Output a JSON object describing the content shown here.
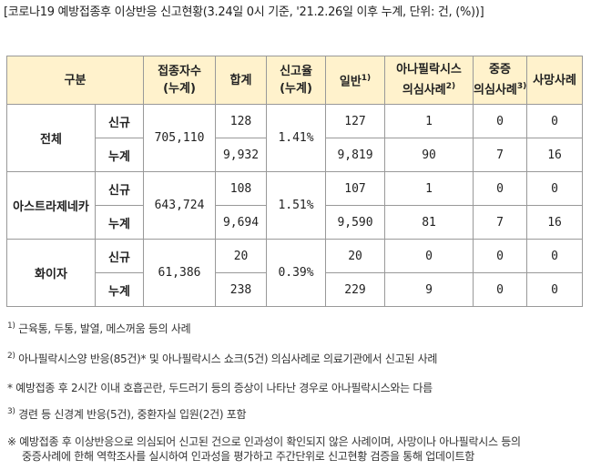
{
  "title": "[코로나19 예방접종후 이상반응 신고현황(3.24일 0시 기준, '21.2.26일 이후 누계, 단위: 건, (%))]",
  "headers": {
    "category": "구분",
    "vaccinated_line1": "접종자수",
    "vaccinated_line2": "(누계)",
    "total": "합계",
    "report_rate_line1": "신고율",
    "report_rate_line2": "(누계)",
    "general": "일반",
    "general_sup": "1)",
    "anaphylaxis_line1": "아나필락시스",
    "anaphylaxis_line2": "의심사례",
    "anaphylaxis_sup": "2)",
    "severe_line1": "중증",
    "severe_line2": "의심사례",
    "severe_sup": "3)",
    "death": "사망사례"
  },
  "groups": [
    {
      "name": "전체",
      "vaccinated": "705,110",
      "rate": "1.41%",
      "rows": [
        {
          "sub": "신규",
          "total": "128",
          "general": "127",
          "anaphylaxis": "1",
          "severe": "0",
          "death": "0"
        },
        {
          "sub": "누계",
          "total": "9,932",
          "general": "9,819",
          "anaphylaxis": "90",
          "severe": "7",
          "death": "16"
        }
      ]
    },
    {
      "name": "아스트라제네카",
      "vaccinated": "643,724",
      "rate": "1.51%",
      "rows": [
        {
          "sub": "신규",
          "total": "108",
          "general": "107",
          "anaphylaxis": "1",
          "severe": "0",
          "death": "0"
        },
        {
          "sub": "누계",
          "total": "9,694",
          "general": "9,590",
          "anaphylaxis": "81",
          "severe": "7",
          "death": "16"
        }
      ]
    },
    {
      "name": "화이자",
      "vaccinated": "61,386",
      "rate": "0.39%",
      "rows": [
        {
          "sub": "신규",
          "total": "20",
          "general": "20",
          "anaphylaxis": "0",
          "severe": "0",
          "death": "0"
        },
        {
          "sub": "누계",
          "total": "238",
          "general": "229",
          "anaphylaxis": "9",
          "severe": "0",
          "death": "0"
        }
      ]
    }
  ],
  "notes": {
    "n1_mark": "1)",
    "n1_text": "근육통, 두통, 발열, 메스꺼움 등의 사례",
    "n2_mark": "2)",
    "n2_text": "아나필락시스양 반응(85건)* 및 아나필락시스 쇼크(5건) 의심사례로 의료기관에서 신고된 사례",
    "n_star": "* 예방접종 후 2시간 이내 호흡곤란, 두드러기 등의 증상이 나타난 경우로 아나필락시스와는 다름",
    "n3_mark": "3)",
    "n3_text": "경련 등 신경계 반응(5건), 중환자실 입원(2건) 포함",
    "n_ref_line1": "※ 예방접종 후 이상반응으로 의심되어 신고된 건으로 인과성이 확인되지 않은 사례이며, 사망이나 아나필락시스 등의",
    "n_ref_line2": "중증사례에 한해 역학조사를 실시하여 인과성을 평가하고 주간단위로 신고현황 검증을 통해 업데이트함"
  }
}
